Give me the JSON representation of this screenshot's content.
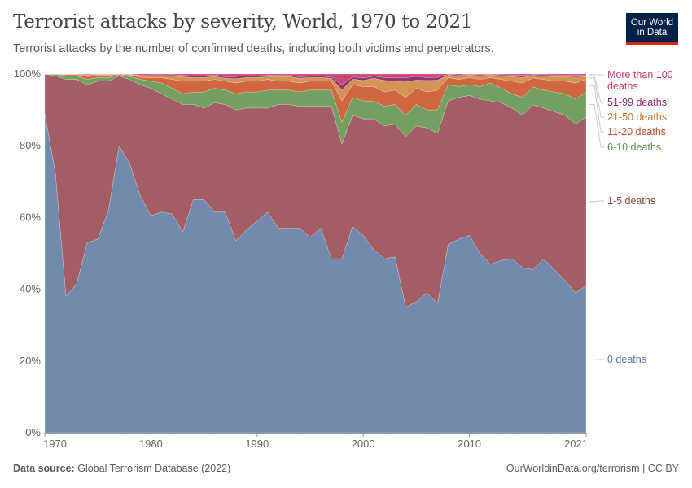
{
  "header": {
    "title": "Terrorist attacks by severity, World, 1970 to 2021",
    "subtitle": "Terrorist attacks by the number of confirmed deaths, including both victims and perpetrators.",
    "logo_line1": "Our World",
    "logo_line2": "in Data"
  },
  "footer": {
    "source_label": "Data source:",
    "source_text": "Global Terrorism Database (2022)",
    "right_text": "OurWorldinData.org/terrorism | CC BY"
  },
  "chart_data": {
    "type": "area",
    "stacked": true,
    "normalized": true,
    "title": "Terrorist attacks by severity, World, 1970 to 2021",
    "xlabel": "",
    "ylabel": "",
    "xlim": [
      1970,
      2021
    ],
    "ylim": [
      0,
      100
    ],
    "x_ticks": [
      1970,
      1980,
      1990,
      2000,
      2010,
      2021
    ],
    "y_ticks": [
      0,
      20,
      40,
      60,
      80,
      100
    ],
    "y_tick_labels": [
      "0%",
      "20%",
      "40%",
      "60%",
      "80%",
      "100%"
    ],
    "x": [
      1970,
      1971,
      1972,
      1973,
      1974,
      1975,
      1976,
      1977,
      1978,
      1979,
      1980,
      1981,
      1982,
      1983,
      1984,
      1985,
      1986,
      1987,
      1988,
      1989,
      1990,
      1991,
      1992,
      1993,
      1994,
      1995,
      1996,
      1997,
      1998,
      1999,
      2000,
      2001,
      2002,
      2003,
      2004,
      2005,
      2006,
      2007,
      2008,
      2009,
      2010,
      2011,
      2012,
      2013,
      2014,
      2015,
      2016,
      2017,
      2018,
      2019,
      2020,
      2021
    ],
    "series": [
      {
        "name": "0 deaths",
        "color": "#6b84ab",
        "values": [
          89,
          72.5,
          38,
          41.5,
          53,
          54,
          62,
          80,
          75,
          66,
          60.5,
          61.5,
          61,
          56,
          65,
          65,
          61.5,
          61.5,
          53.5,
          56.5,
          59,
          61.5,
          57,
          57,
          57,
          54.5,
          57,
          48.5,
          48.5,
          57.5,
          55,
          51,
          48.5,
          49,
          35,
          36.5,
          39,
          36,
          52.5,
          54,
          55,
          50,
          47,
          48,
          48.5,
          46,
          45.5,
          48.5,
          45.5,
          42.5,
          39,
          41
        ]
      },
      {
        "name": "1-5 deaths",
        "color": "#9e545c",
        "values": [
          11,
          27,
          60.5,
          57,
          44,
          44,
          36,
          19.5,
          23.5,
          31,
          35.5,
          33,
          32,
          35.5,
          26.5,
          25.5,
          30.5,
          30,
          36.5,
          34,
          31.5,
          29,
          34.5,
          34.5,
          34,
          36.5,
          34,
          42.5,
          32,
          31,
          32.5,
          36.5,
          37,
          37,
          47.5,
          49,
          46,
          47.5,
          40,
          39.5,
          39,
          43,
          45.5,
          44,
          42,
          42.5,
          46,
          42,
          44,
          46,
          47,
          47
        ]
      },
      {
        "name": "6-10 deaths",
        "color": "#6b9c58",
        "values": [
          0,
          0.5,
          1,
          1,
          1.5,
          1,
          1,
          0.3,
          0.8,
          1.5,
          2,
          3,
          3,
          3,
          3.5,
          4.5,
          4,
          4,
          4.5,
          4.5,
          4.5,
          5,
          4,
          4,
          4,
          4.5,
          4.5,
          4.5,
          6,
          5,
          5,
          5,
          5.5,
          5.5,
          6,
          6,
          5,
          6.5,
          4.5,
          3,
          3,
          3.5,
          5,
          4,
          4,
          5,
          5,
          5,
          5.5,
          6,
          7,
          7
        ]
      },
      {
        "name": "11-20 deaths",
        "color": "#cf5f35",
        "values": [
          0,
          0,
          0.3,
          0.3,
          0.8,
          0.6,
          0.6,
          0.2,
          0.4,
          0.6,
          1,
          1.5,
          2.5,
          3.5,
          3,
          3,
          2.5,
          2.5,
          3,
          3,
          3,
          3,
          2.5,
          2.5,
          2.5,
          2.5,
          2.5,
          2.5,
          6,
          3.5,
          4,
          4,
          4,
          4,
          5,
          4.5,
          5,
          5.5,
          2,
          2,
          2,
          2,
          1.5,
          2.5,
          3.5,
          4,
          2.5,
          3,
          3,
          3.5,
          4.5,
          3.5
        ]
      },
      {
        "name": "21-50 deaths",
        "color": "#d38d4a",
        "values": [
          0,
          0,
          0.2,
          0.2,
          0.4,
          0.3,
          0.3,
          0,
          0.2,
          0.4,
          0.5,
          0.5,
          1,
          1.2,
          1,
          1,
          0.8,
          0.8,
          1.2,
          1,
          1,
          0.7,
          1.3,
          1.3,
          1.3,
          1,
          1,
          0.8,
          3,
          1.6,
          1.7,
          2.3,
          3.2,
          2.5,
          4.3,
          2.3,
          3.2,
          2.8,
          0.7,
          0.9,
          0.8,
          1,
          0.8,
          1,
          1.3,
          1.5,
          0.7,
          0.9,
          1.3,
          1.3,
          1.6,
          0.8
        ]
      },
      {
        "name": "51-99 deaths",
        "color": "#8a2d6b",
        "values": [
          0,
          0,
          0,
          0,
          0.1,
          0.05,
          0.05,
          0,
          0,
          0.2,
          0.25,
          0.25,
          0.3,
          0.4,
          0.5,
          0.5,
          0.4,
          0.4,
          0.6,
          0.5,
          0.5,
          0.4,
          0.4,
          0.4,
          0.4,
          0.4,
          0.4,
          0.4,
          1.5,
          0.6,
          0.7,
          0.6,
          0.8,
          1,
          1.2,
          1,
          0.8,
          0.8,
          0.2,
          0.3,
          0.1,
          0.3,
          0.1,
          0.3,
          0.4,
          0.6,
          0.2,
          0.4,
          0.4,
          0.4,
          0.5,
          0.4
        ]
      },
      {
        "name": "More than 100 deaths",
        "color": "#c93b6e",
        "values": [
          0,
          0,
          0,
          0,
          0.2,
          0.05,
          0.05,
          0,
          0.1,
          0.3,
          0.25,
          0.25,
          0.2,
          0.4,
          0.5,
          0.5,
          0.3,
          0.8,
          0.7,
          0.5,
          0.5,
          0.4,
          0.3,
          0.3,
          0.8,
          0.6,
          0.6,
          0.8,
          3,
          0.8,
          1.1,
          0.6,
          1,
          1,
          1,
          0.7,
          1,
          0.9,
          0.1,
          0.3,
          0.1,
          0.2,
          0.1,
          0.2,
          0.3,
          0.4,
          0.2,
          0.2,
          0.3,
          0.3,
          0.4,
          0.3
        ]
      }
    ],
    "legend": [
      "More than 100 deaths",
      "51-99 deaths",
      "21-50 deaths",
      "11-20 deaths",
      "6-10 deaths",
      "1-5 deaths",
      "0 deaths"
    ],
    "legend_placement": "right"
  }
}
